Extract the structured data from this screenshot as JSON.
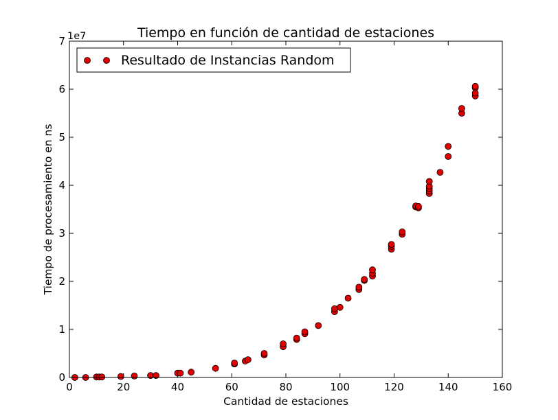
{
  "chart_data": {
    "type": "scatter",
    "title": "Tiempo en función de cantidad de estaciones",
    "xlabel": "Cantidad de estaciones",
    "ylabel": "Tiempo de procesamiento en ns",
    "y_offset_label": "1e7",
    "xlim": [
      0,
      160
    ],
    "ylim": [
      0,
      7
    ],
    "y_scale_factor": 10000000,
    "x_ticks": [
      0,
      20,
      40,
      60,
      80,
      100,
      120,
      140,
      160
    ],
    "y_ticks": [
      0,
      1,
      2,
      3,
      4,
      5,
      6,
      7
    ],
    "grid": false,
    "legend_position": "top-left",
    "series": [
      {
        "name": "Resultado de Instancias Random",
        "color": "#e00000",
        "edge_color": "#000000",
        "marker": "circle",
        "points": [
          [
            2,
            0.0
          ],
          [
            6,
            0.0
          ],
          [
            10,
            0.01
          ],
          [
            11,
            0.01
          ],
          [
            12,
            0.01
          ],
          [
            19,
            0.02
          ],
          [
            24,
            0.03
          ],
          [
            30,
            0.04
          ],
          [
            32,
            0.04
          ],
          [
            40,
            0.09
          ],
          [
            41,
            0.09
          ],
          [
            45,
            0.11
          ],
          [
            54,
            0.19
          ],
          [
            61,
            0.28
          ],
          [
            61,
            0.3
          ],
          [
            65,
            0.34
          ],
          [
            66,
            0.37
          ],
          [
            72,
            0.47
          ],
          [
            72,
            0.5
          ],
          [
            79,
            0.64
          ],
          [
            79,
            0.7
          ],
          [
            84,
            0.79
          ],
          [
            84,
            0.82
          ],
          [
            87,
            0.91
          ],
          [
            87,
            0.95
          ],
          [
            92,
            1.08
          ],
          [
            98,
            1.37
          ],
          [
            98,
            1.43
          ],
          [
            100,
            1.46
          ],
          [
            103,
            1.65
          ],
          [
            107,
            1.83
          ],
          [
            107,
            1.88
          ],
          [
            109,
            2.02
          ],
          [
            109,
            2.04
          ],
          [
            112,
            2.11
          ],
          [
            112,
            2.17
          ],
          [
            112,
            2.24
          ],
          [
            119,
            2.67
          ],
          [
            119,
            2.73
          ],
          [
            119,
            2.77
          ],
          [
            123,
            2.98
          ],
          [
            123,
            3.03
          ],
          [
            128,
            3.55
          ],
          [
            128,
            3.57
          ],
          [
            129,
            3.53
          ],
          [
            129,
            3.56
          ],
          [
            133,
            3.83
          ],
          [
            133,
            3.88
          ],
          [
            133,
            3.93
          ],
          [
            133,
            3.98
          ],
          [
            133,
            4.08
          ],
          [
            137,
            4.27
          ],
          [
            140,
            4.6
          ],
          [
            140,
            4.81
          ],
          [
            145,
            5.5
          ],
          [
            145,
            5.6
          ],
          [
            150,
            5.86
          ],
          [
            150,
            5.92
          ],
          [
            150,
            6.03
          ],
          [
            150,
            6.06
          ]
        ]
      }
    ]
  }
}
